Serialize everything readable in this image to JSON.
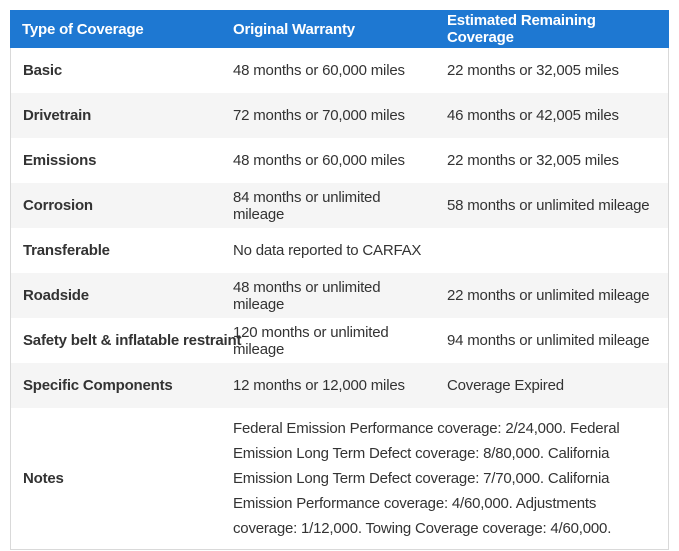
{
  "table": {
    "columns": [
      "Type of Coverage",
      "Original Warranty",
      "Estimated Remaining Coverage"
    ],
    "rows": [
      {
        "type": "Basic",
        "original": "48 months or 60,000 miles",
        "remaining": "22 months or 32,005 miles"
      },
      {
        "type": "Drivetrain",
        "original": "72 months or 70,000 miles",
        "remaining": "46 months or 42,005 miles"
      },
      {
        "type": "Emissions",
        "original": "48 months or 60,000 miles",
        "remaining": "22 months or 32,005 miles"
      },
      {
        "type": "Corrosion",
        "original": "84 months or unlimited mileage",
        "remaining": "58 months or unlimited mileage"
      },
      {
        "type": "Transferable",
        "original": "No data reported to CARFAX",
        "remaining": ""
      },
      {
        "type": "Roadside",
        "original": "48 months or unlimited mileage",
        "remaining": "22 months or unlimited mileage"
      },
      {
        "type": "Safety belt & inflatable restraint",
        "original": "120 months or unlimited mileage",
        "remaining": "94 months or unlimited mileage"
      },
      {
        "type": "Specific Components",
        "original": "12 months or 12,000 miles",
        "remaining": "Coverage Expired"
      },
      {
        "type": "Notes",
        "original": "Federal Emission Performance coverage: 2/24,000. Federal Emission Long Term Defect coverage: 8/80,000. California Emission Long Term Defect coverage: 7/70,000. California Emission Performance coverage: 4/60,000. Adjustments coverage: 1/12,000. Towing Coverage coverage: 4/60,000.",
        "span2": true
      }
    ],
    "colors": {
      "header_bg": "#1e78d2",
      "header_text": "#ffffff",
      "row_alt_bg": "#f5f5f5",
      "border": "#d9d9d9",
      "text": "#333333"
    }
  }
}
